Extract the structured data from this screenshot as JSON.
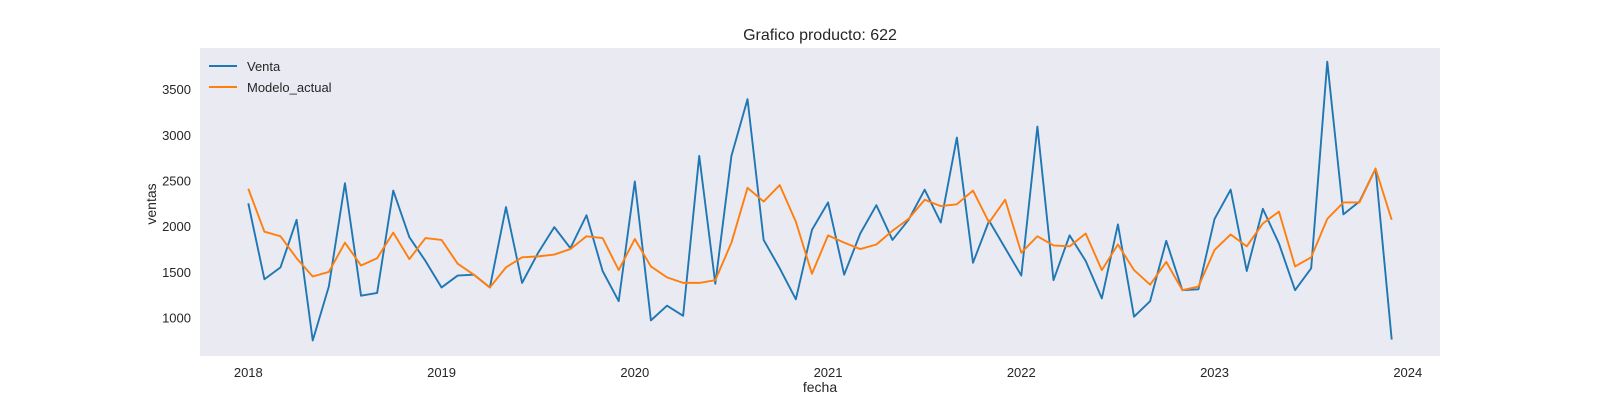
{
  "chart_data": {
    "type": "line",
    "title": "Grafico producto: 622",
    "xlabel": "fecha",
    "ylabel": "ventas",
    "x_start": "2018-01",
    "x_ticks": [
      "2018",
      "2019",
      "2020",
      "2021",
      "2022",
      "2023",
      "2024"
    ],
    "y_ticks": [
      "1000",
      "1500",
      "2000",
      "2500",
      "3000",
      "3500"
    ],
    "xlim": [
      "2017-10",
      "2024-03"
    ],
    "ylim": [
      580,
      3950
    ],
    "grid": false,
    "legend_position": "upper-left",
    "colors": {
      "background": "#ffffff",
      "plot_background": "#eaeaf2",
      "text": "#262626"
    },
    "series": [
      {
        "name": "Venta",
        "color": "#1f77b4",
        "values": [
          2250,
          1420,
          1550,
          2070,
          750,
          1340,
          2470,
          1240,
          1270,
          2390,
          1880,
          1620,
          1330,
          1460,
          1470,
          1330,
          2210,
          1380,
          1710,
          1990,
          1760,
          2120,
          1510,
          1180,
          2490,
          970,
          1130,
          1020,
          2770,
          1370,
          2770,
          3390,
          1850,
          1540,
          1200,
          1960,
          2260,
          1470,
          1920,
          2230,
          1850,
          2070,
          2400,
          2040,
          2970,
          1600,
          2060,
          1760,
          1460,
          3090,
          1410,
          1900,
          1620,
          1210,
          2020,
          1010,
          1180,
          1840,
          1300,
          1310,
          2080,
          2400,
          1510,
          2190,
          1810,
          1300,
          1540,
          3800,
          2130,
          2270,
          2630,
          760
        ]
      },
      {
        "name": "Modelo_actual",
        "color": "#ff7f0e",
        "values": [
          2410,
          1940,
          1890,
          1650,
          1450,
          1500,
          1820,
          1570,
          1650,
          1930,
          1640,
          1870,
          1850,
          1590,
          1470,
          1330,
          1550,
          1660,
          1670,
          1690,
          1750,
          1890,
          1870,
          1520,
          1860,
          1560,
          1440,
          1380,
          1380,
          1410,
          1820,
          2420,
          2270,
          2450,
          2050,
          1480,
          1900,
          1820,
          1750,
          1800,
          1950,
          2080,
          2290,
          2220,
          2240,
          2390,
          2040,
          2290,
          1710,
          1890,
          1790,
          1780,
          1920,
          1520,
          1800,
          1520,
          1360,
          1610,
          1300,
          1340,
          1740,
          1910,
          1780,
          2030,
          2160,
          1560,
          1660,
          2080,
          2260,
          2260,
          2630,
          2070
        ]
      }
    ]
  }
}
